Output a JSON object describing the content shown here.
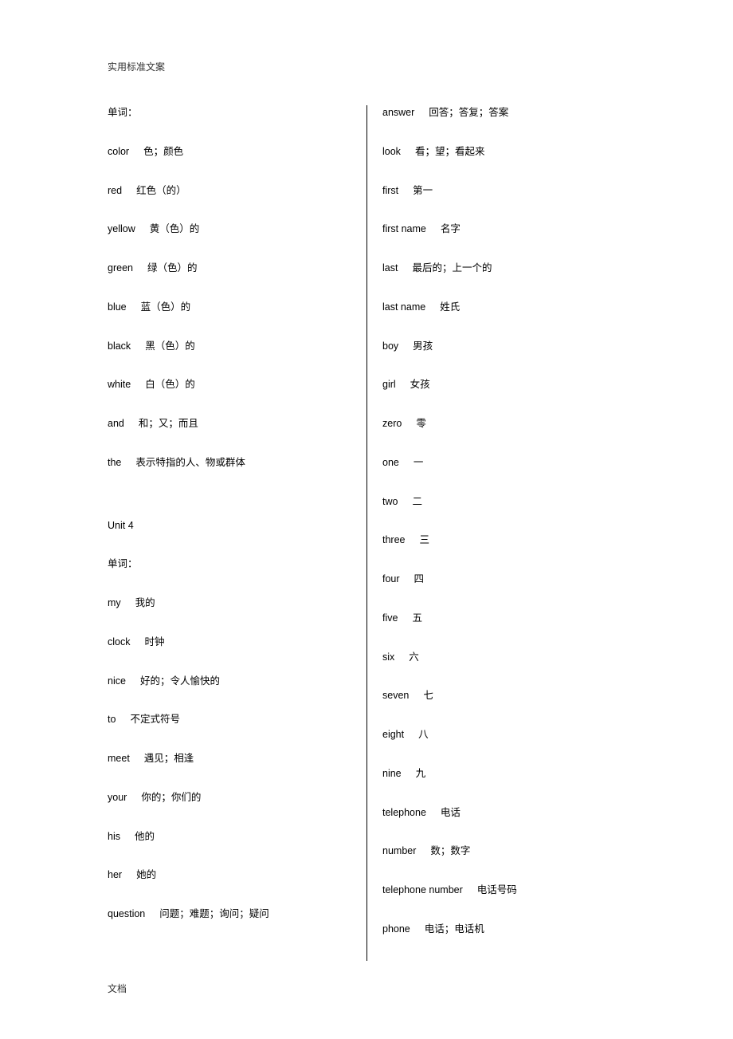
{
  "header": "实用标准文案",
  "footer": "文档",
  "left_column": [
    {
      "word": "单词：",
      "def": ""
    },
    {
      "word": "color",
      "def": "色；颜色"
    },
    {
      "word": "red",
      "def": "红色（的）"
    },
    {
      "word": "yellow",
      "def": "黄（色）的"
    },
    {
      "word": "green",
      "def": "绿（色）的"
    },
    {
      "word": "blue",
      "def": "蓝（色）的"
    },
    {
      "word": "black",
      "def": "黑（色）的"
    },
    {
      "word": "white",
      "def": "白（色）的"
    },
    {
      "word": "and",
      "def": "和；又；而且"
    },
    {
      "word": "the",
      "def": "表示特指的人、物或群体"
    },
    {
      "gap": true
    },
    {
      "word": "Unit 4",
      "def": ""
    },
    {
      "word": "单词：",
      "def": ""
    },
    {
      "word": "my",
      "def": "我的"
    },
    {
      "word": "clock",
      "def": "时钟"
    },
    {
      "word": "nice",
      "def": "好的；令人愉快的"
    },
    {
      "word": "to",
      "def": "不定式符号"
    },
    {
      "word": "meet",
      "def": "遇见；相逢"
    },
    {
      "word": "your",
      "def": "你的；你们的"
    },
    {
      "word": "his",
      "def": "他的"
    },
    {
      "word": "her",
      "def": "她的"
    },
    {
      "word": "question",
      "def": "问题；难题；询问；疑问"
    }
  ],
  "right_column": [
    {
      "word": "answer",
      "def": "回答；答复；答案"
    },
    {
      "word": "look",
      "def": "看；望；看起来"
    },
    {
      "word": "first",
      "def": "第一"
    },
    {
      "word": "first name",
      "def": "名字"
    },
    {
      "word": "last",
      "def": "最后的；上一个的"
    },
    {
      "word": "last name",
      "def": "姓氏"
    },
    {
      "word": "boy",
      "def": "男孩"
    },
    {
      "word": "girl",
      "def": "女孩"
    },
    {
      "word": "zero",
      "def": "零"
    },
    {
      "word": "one",
      "def": "一"
    },
    {
      "word": "two",
      "def": "二"
    },
    {
      "word": "three",
      "def": "三"
    },
    {
      "word": "four",
      "def": "四"
    },
    {
      "word": "five",
      "def": "五"
    },
    {
      "word": "six",
      "def": "六"
    },
    {
      "word": "seven",
      "def": "七"
    },
    {
      "word": "eight",
      "def": "八"
    },
    {
      "word": "nine",
      "def": "九"
    },
    {
      "word": "telephone",
      "def": "电话"
    },
    {
      "word": "number",
      "def": "数；数字"
    },
    {
      "word": "telephone number",
      "def": "电话号码"
    },
    {
      "word": "phone",
      "def": "电话；电话机"
    }
  ]
}
